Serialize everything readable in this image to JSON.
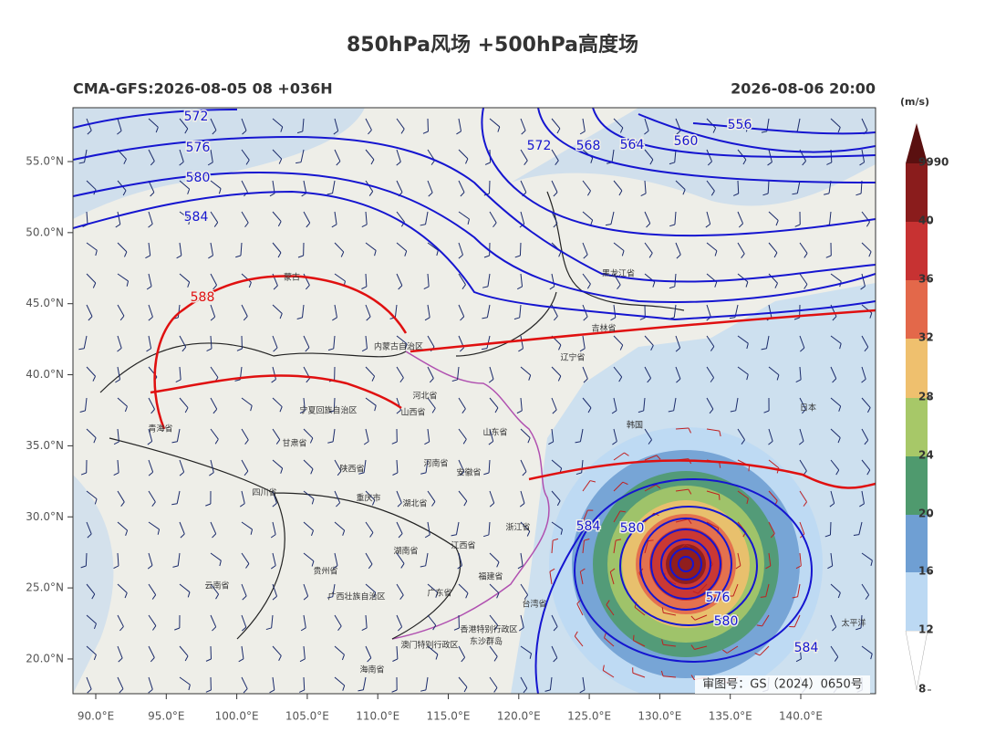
{
  "map": {
    "title": "850hPa风场 +500hPa高度场",
    "subtitle_left": "CMA-GFS:2026-08-05 08 +036H",
    "subtitle_right": "2026-08-06 20:00",
    "lat_ticks": [
      {
        "value": 20,
        "label": "20.0°N"
      },
      {
        "value": 25,
        "label": "25.0°N"
      },
      {
        "value": 30,
        "label": "30.0°N"
      },
      {
        "value": 35,
        "label": "35.0°N"
      },
      {
        "value": 40,
        "label": "40.0°N"
      },
      {
        "value": 45,
        "label": "45.0°N"
      },
      {
        "value": 50,
        "label": "50.0°N"
      },
      {
        "value": 55,
        "label": "55.0°N"
      }
    ],
    "lon_ticks": [
      {
        "value": 90,
        "label": "90.0°E"
      },
      {
        "value": 95,
        "label": "95.0°E"
      },
      {
        "value": 100,
        "label": "100.0°E"
      },
      {
        "value": 105,
        "label": "105.0°E"
      },
      {
        "value": 110,
        "label": "110.0°E"
      },
      {
        "value": 115,
        "label": "115.0°E"
      },
      {
        "value": 120,
        "label": "120.0°E"
      },
      {
        "value": 125,
        "label": "125.0°E"
      },
      {
        "value": 130,
        "label": "130.0°E"
      },
      {
        "value": 135,
        "label": "135.0°E"
      },
      {
        "value": 140,
        "label": "140.0°E"
      }
    ],
    "colorbar": {
      "unit": "(m/s)",
      "levels": [
        8,
        12,
        16,
        20,
        24,
        28,
        32,
        36,
        40,
        9990
      ],
      "colors": [
        "#ffffff",
        "#bcd9f3",
        "#6f9fd3",
        "#4f9a6e",
        "#a7c868",
        "#efc06e",
        "#e3684a",
        "#c73232",
        "#8a1c1c",
        "#5a1010"
      ]
    },
    "contour_labels": [
      572,
      576,
      580,
      584,
      588,
      572,
      568,
      564,
      560,
      556,
      584,
      580,
      576,
      580,
      584
    ],
    "places": [
      "黑龙江省",
      "吉林省",
      "辽宁省",
      "内蒙古自治区",
      "河北省",
      "山西省",
      "山东省",
      "河南省",
      "陕西省",
      "甘肃省",
      "青海省",
      "四川省",
      "湖北省",
      "湖南省",
      "江西省",
      "浙江省",
      "福建省",
      "广东省",
      "云南省",
      "贵州省",
      "安徽省",
      "宁夏回族自治区",
      "广西壮族自治区",
      "重庆市",
      "香港特别行政区",
      "澳门特别行政区",
      "东沙群岛",
      "海南省",
      "台湾省",
      "韩国",
      "日本",
      "蒙古",
      "太平洋"
    ],
    "approval": "审图号：GS（2024）0650号"
  }
}
